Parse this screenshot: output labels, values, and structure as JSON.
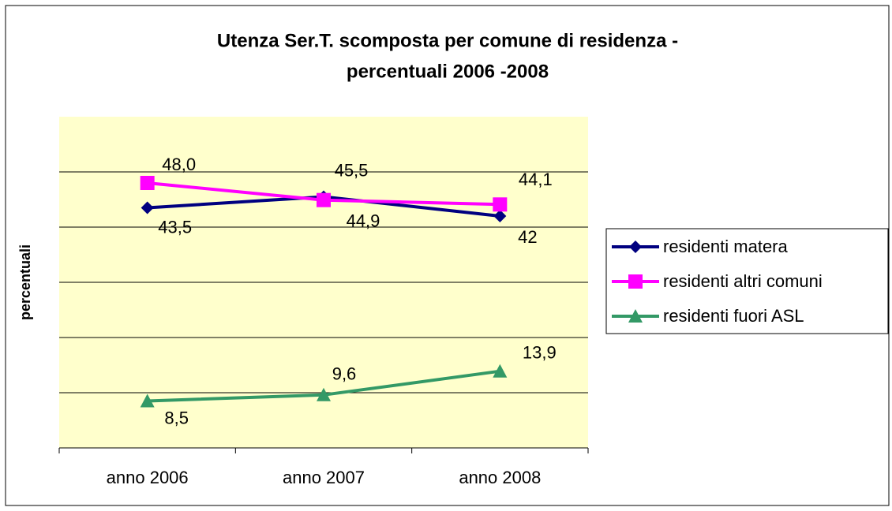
{
  "chart_data": {
    "type": "line",
    "title": [
      "Utenza Ser.T. scomposta per comune di residenza -",
      "percentuali 2006 -2008"
    ],
    "y_label": "percentuali",
    "categories": [
      "anno 2006",
      "anno 2007",
      "anno 2008"
    ],
    "series": [
      {
        "name": "residenti matera",
        "color": "#000080",
        "marker": "diamond",
        "values": [
          43.5,
          45.5,
          42
        ],
        "value_labels": [
          "43,5",
          "45,5",
          "42"
        ]
      },
      {
        "name": "residenti altri comuni",
        "color": "#ff00ff",
        "marker": "square",
        "values": [
          48.0,
          44.9,
          44.1
        ],
        "value_labels": [
          "48,0",
          "44,9",
          "44,1"
        ]
      },
      {
        "name": "residenti fuori ASL",
        "color": "#339966",
        "marker": "triangle",
        "values": [
          8.5,
          9.6,
          13.9
        ],
        "value_labels": [
          "8,5",
          "9,6",
          "13,9"
        ]
      }
    ],
    "ylim": [
      0,
      60
    ],
    "yticks": [
      10,
      20,
      30,
      40,
      50
    ],
    "grid": true,
    "legend": "right"
  }
}
